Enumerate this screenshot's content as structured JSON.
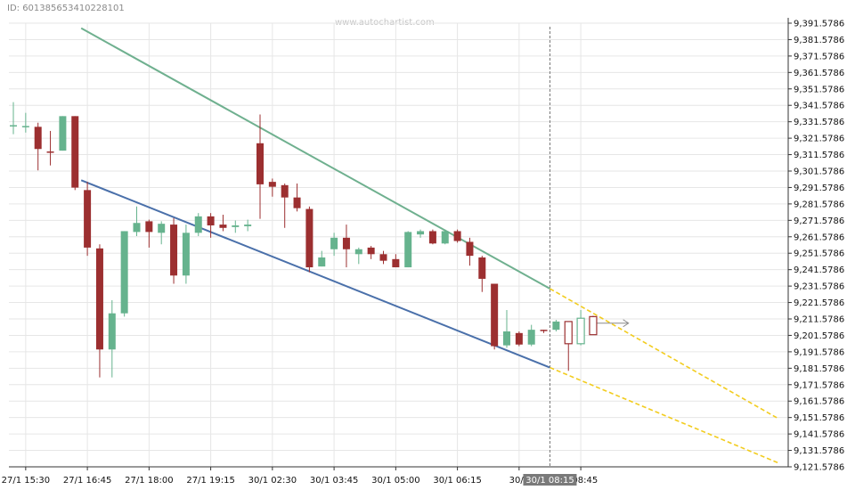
{
  "header": {
    "id_label": "ID: 6013856534102281​01",
    "watermark": "www.autochartist.com"
  },
  "colors": {
    "bull": "#66b38e",
    "bear": "#9c2f30",
    "resistance": "#6fb08f",
    "support": "#4a70aa",
    "forecast": "#f2cc1e",
    "grid": "#e6e6e6",
    "axis": "#333333",
    "marker_bg": "#7a7a7a"
  },
  "chart_data": {
    "type": "candlestick",
    "title": "",
    "ylim": [
      9121.5786,
      9391.5786
    ],
    "y_ticks": [
      "9,391.5786",
      "9,381.5786",
      "9,371.5786",
      "9,361.5786",
      "9,351.5786",
      "9,341.5786",
      "9,331.5786",
      "9,321.5786",
      "9,311.5786",
      "9,301.5786",
      "9,291.5786",
      "9,281.5786",
      "9,271.5786",
      "9,261.5786",
      "9,251.5786",
      "9,241.5786",
      "9,231.5786",
      "9,221.5786",
      "9,211.5786",
      "9,201.5786",
      "9,191.5786",
      "9,181.5786",
      "9,171.5786",
      "9,161.5786",
      "9,151.5786",
      "9,141.5786",
      "9,131.5786",
      "9,121.5786"
    ],
    "x_ticks": [
      {
        "bar": 1,
        "label": "27/1 15:30"
      },
      {
        "bar": 6,
        "label": "27/1 16:45"
      },
      {
        "bar": 11,
        "label": "27/1 18:00"
      },
      {
        "bar": 16,
        "label": "27/1 19:15"
      },
      {
        "bar": 21,
        "label": "30/1 02:30"
      },
      {
        "bar": 26,
        "label": "30/1 03:45"
      },
      {
        "bar": 31,
        "label": "30/1 05:00"
      },
      {
        "bar": 36,
        "label": "30/1 06:15"
      },
      {
        "bar": 41,
        "label": "30/1"
      },
      {
        "bar": 46,
        "label": "1 08:45"
      }
    ],
    "current_marker": {
      "bar": 43.5,
      "label": "30/1 08:15"
    },
    "candles": [
      {
        "o": 9329.5,
        "h": 9343.5,
        "l": 9324.0,
        "c": 9329.5
      },
      {
        "o": 9329.0,
        "h": 9337.0,
        "l": 9325.0,
        "c": 9329.0
      },
      {
        "o": 9328.5,
        "h": 9331.0,
        "l": 9302.0,
        "c": 9315.0
      },
      {
        "o": 9313.5,
        "h": 9326.0,
        "l": 9305.0,
        "c": 9313.0
      },
      {
        "o": 9314.0,
        "h": 9335.0,
        "l": 9314.0,
        "c": 9335.0
      },
      {
        "o": 9335.0,
        "h": 9335.0,
        "l": 9290.0,
        "c": 9291.5
      },
      {
        "o": 9290.0,
        "h": 9295.0,
        "l": 9250.0,
        "c": 9255.0
      },
      {
        "o": 9254.5,
        "h": 9257.0,
        "l": 9176.0,
        "c": 9193.0
      },
      {
        "o": 9193.0,
        "h": 9223.0,
        "l": 9176.0,
        "c": 9215.0
      },
      {
        "o": 9215.0,
        "h": 9265.0,
        "l": 9213.0,
        "c": 9265.0
      },
      {
        "o": 9264.5,
        "h": 9280.0,
        "l": 9262.0,
        "c": 9270.0
      },
      {
        "o": 9271.0,
        "h": 9272.0,
        "l": 9255.0,
        "c": 9264.5
      },
      {
        "o": 9264.0,
        "h": 9271.0,
        "l": 9257.0,
        "c": 9269.5
      },
      {
        "o": 9269.0,
        "h": 9273.0,
        "l": 9233.0,
        "c": 9238.0
      },
      {
        "o": 9238.0,
        "h": 9269.0,
        "l": 9233.0,
        "c": 9264.0
      },
      {
        "o": 9264.0,
        "h": 9276.0,
        "l": 9262.0,
        "c": 9274.0
      },
      {
        "o": 9274.0,
        "h": 9276.0,
        "l": 9261.0,
        "c": 9268.5
      },
      {
        "o": 9269.0,
        "h": 9275.0,
        "l": 9265.0,
        "c": 9267.0
      },
      {
        "o": 9267.5,
        "h": 9271.5,
        "l": 9264.0,
        "c": 9268.5
      },
      {
        "o": 9268.0,
        "h": 9272.0,
        "l": 9265.0,
        "c": 9269.0
      },
      {
        "o": 9318.5,
        "h": 9336.0,
        "l": 9272.5,
        "c": 9293.5
      },
      {
        "o": 9295.0,
        "h": 9297.0,
        "l": 9286.0,
        "c": 9292.0
      },
      {
        "o": 9293.0,
        "h": 9294.0,
        "l": 9267.0,
        "c": 9285.5
      },
      {
        "o": 9285.5,
        "h": 9294.0,
        "l": 9277.0,
        "c": 9279.0
      },
      {
        "o": 9278.5,
        "h": 9280.0,
        "l": 9240.0,
        "c": 9243.0
      },
      {
        "o": 9243.5,
        "h": 9253.0,
        "l": 9243.5,
        "c": 9249.0
      },
      {
        "o": 9254.0,
        "h": 9264.0,
        "l": 9250.0,
        "c": 9261.0
      },
      {
        "o": 9261.0,
        "h": 9269.0,
        "l": 9243.0,
        "c": 9254.0
      },
      {
        "o": 9251.0,
        "h": 9255.0,
        "l": 9245.0,
        "c": 9254.0
      },
      {
        "o": 9255.0,
        "h": 9256.0,
        "l": 9248.0,
        "c": 9251.0
      },
      {
        "o": 9251.0,
        "h": 9253.0,
        "l": 9245.0,
        "c": 9247.0
      },
      {
        "o": 9248.0,
        "h": 9251.0,
        "l": 9244.0,
        "c": 9243.0
      },
      {
        "o": 9243.0,
        "h": 9265.0,
        "l": 9243.0,
        "c": 9264.5
      },
      {
        "o": 9263.0,
        "h": 9266.0,
        "l": 9261.0,
        "c": 9265.0
      },
      {
        "o": 9265.0,
        "h": 9266.0,
        "l": 9257.0,
        "c": 9257.5
      },
      {
        "o": 9257.5,
        "h": 9266.0,
        "l": 9257.0,
        "c": 9265.0
      },
      {
        "o": 9265.0,
        "h": 9266.0,
        "l": 9258.0,
        "c": 9259.0
      },
      {
        "o": 9258.5,
        "h": 9261.0,
        "l": 9244.0,
        "c": 9250.0
      },
      {
        "o": 9249.0,
        "h": 9250.0,
        "l": 9228.0,
        "c": 9236.0
      },
      {
        "o": 9233.0,
        "h": 9233.0,
        "l": 9193.0,
        "c": 9195.0
      },
      {
        "o": 9195.5,
        "h": 9217.0,
        "l": 9194.0,
        "c": 9204.0
      },
      {
        "o": 9203.0,
        "h": 9204.0,
        "l": 9195.0,
        "c": 9196.0
      },
      {
        "o": 9196.0,
        "h": 9208.0,
        "l": 9195.0,
        "c": 9205.0
      },
      {
        "o": 9205.0,
        "h": 9205.0,
        "l": 9203.0,
        "c": 9204.5
      },
      {
        "o": 9205.0,
        "h": 9211.0,
        "l": 9204.0,
        "c": 9210.0
      }
    ],
    "forecast_candles": [
      {
        "o": 9210.0,
        "h": 9210.0,
        "l": 9180.0,
        "c": 9196.5
      },
      {
        "o": 9196.5,
        "h": 9217.0,
        "l": 9195.5,
        "c": 9212.0
      },
      {
        "o": 9213.0,
        "h": 9213.5,
        "l": 9202.0,
        "c": 9202.0
      }
    ],
    "trendlines": {
      "resistance": {
        "from": [
          5.5,
          9388.5
        ],
        "to": [
          43.5,
          9230.0
        ]
      },
      "support": {
        "from": [
          5.5,
          9296.0
        ],
        "to": [
          43.5,
          9182.0
        ]
      },
      "resistance_forecast": {
        "from": [
          43.5,
          9230.0
        ],
        "to": [
          62.0,
          9151.0
        ]
      },
      "support_forecast": {
        "from": [
          43.5,
          9182.0
        ],
        "to": [
          62.0,
          9124.0
        ]
      },
      "arrow": {
        "from": [
          47.0,
          9209.0
        ],
        "to": [
          49.0,
          9209.0
        ]
      }
    }
  }
}
